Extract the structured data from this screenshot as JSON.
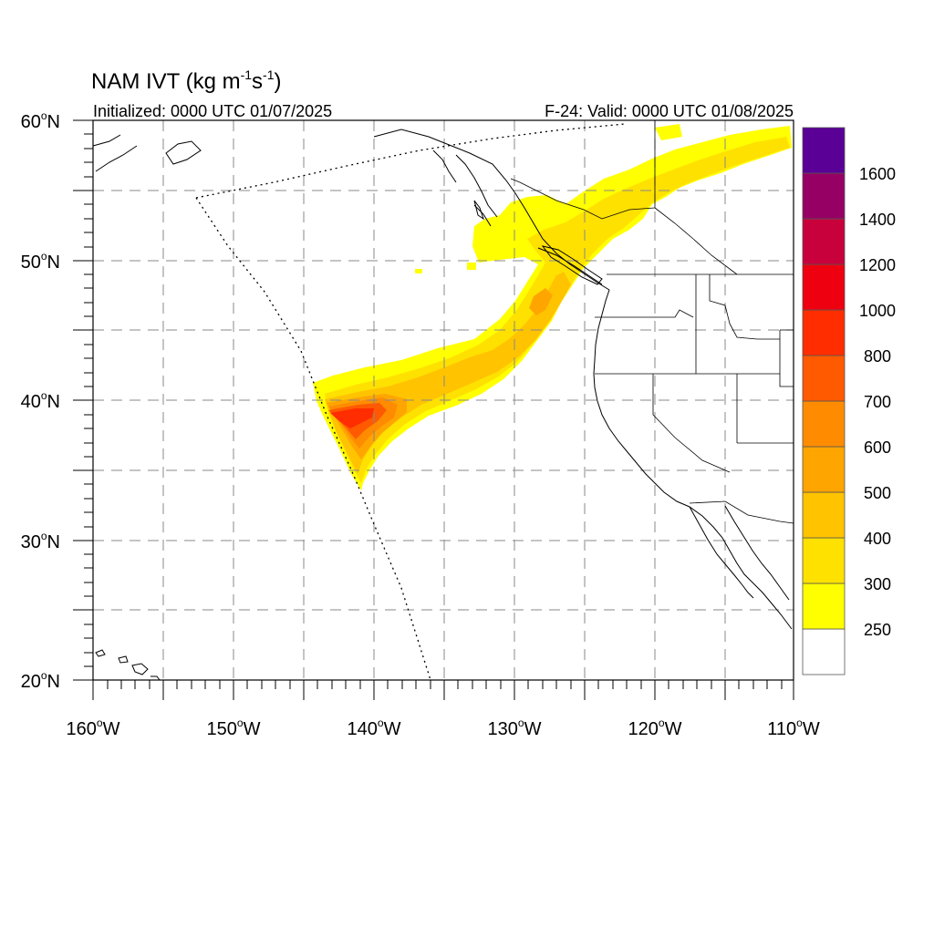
{
  "title": {
    "main": "NAM IVT (kg m",
    "exp1": "-1",
    "mid": "s",
    "exp2": "-1",
    "close": ")"
  },
  "initialized": "Initialized: 0000 UTC 01/07/2025",
  "valid": "F-24: Valid: 0000 UTC 01/08/2025",
  "axes": {
    "x_ticks": [
      {
        "deg": "160",
        "hemi": "W"
      },
      {
        "deg": "150",
        "hemi": "W"
      },
      {
        "deg": "140",
        "hemi": "W"
      },
      {
        "deg": "130",
        "hemi": "W"
      },
      {
        "deg": "120",
        "hemi": "W"
      },
      {
        "deg": "110",
        "hemi": "W"
      }
    ],
    "y_ticks": [
      {
        "deg": "60",
        "hemi": "N"
      },
      {
        "deg": "50",
        "hemi": "N"
      },
      {
        "deg": "40",
        "hemi": "N"
      },
      {
        "deg": "30",
        "hemi": "N"
      },
      {
        "deg": "20",
        "hemi": "N"
      }
    ],
    "lon_range": [
      -160,
      -110
    ],
    "lat_range": [
      20,
      60
    ],
    "grid": "dashed every 5 degrees"
  },
  "colorbar": {
    "levels": [
      {
        "value": "",
        "color": "#ffffff"
      },
      {
        "value": "250",
        "color": "#ffff00"
      },
      {
        "value": "300",
        "color": "#ffe100"
      },
      {
        "value": "400",
        "color": "#ffc300"
      },
      {
        "value": "500",
        "color": "#ffa500"
      },
      {
        "value": "600",
        "color": "#ff8c00"
      },
      {
        "value": "700",
        "color": "#ff5a00"
      },
      {
        "value": "800",
        "color": "#ff2d00"
      },
      {
        "value": "1000",
        "color": "#ee0010"
      },
      {
        "value": "1200",
        "color": "#c8003c"
      },
      {
        "value": "1400",
        "color": "#960064"
      },
      {
        "value": "1600",
        "color": "#5a0096"
      }
    ]
  }
}
